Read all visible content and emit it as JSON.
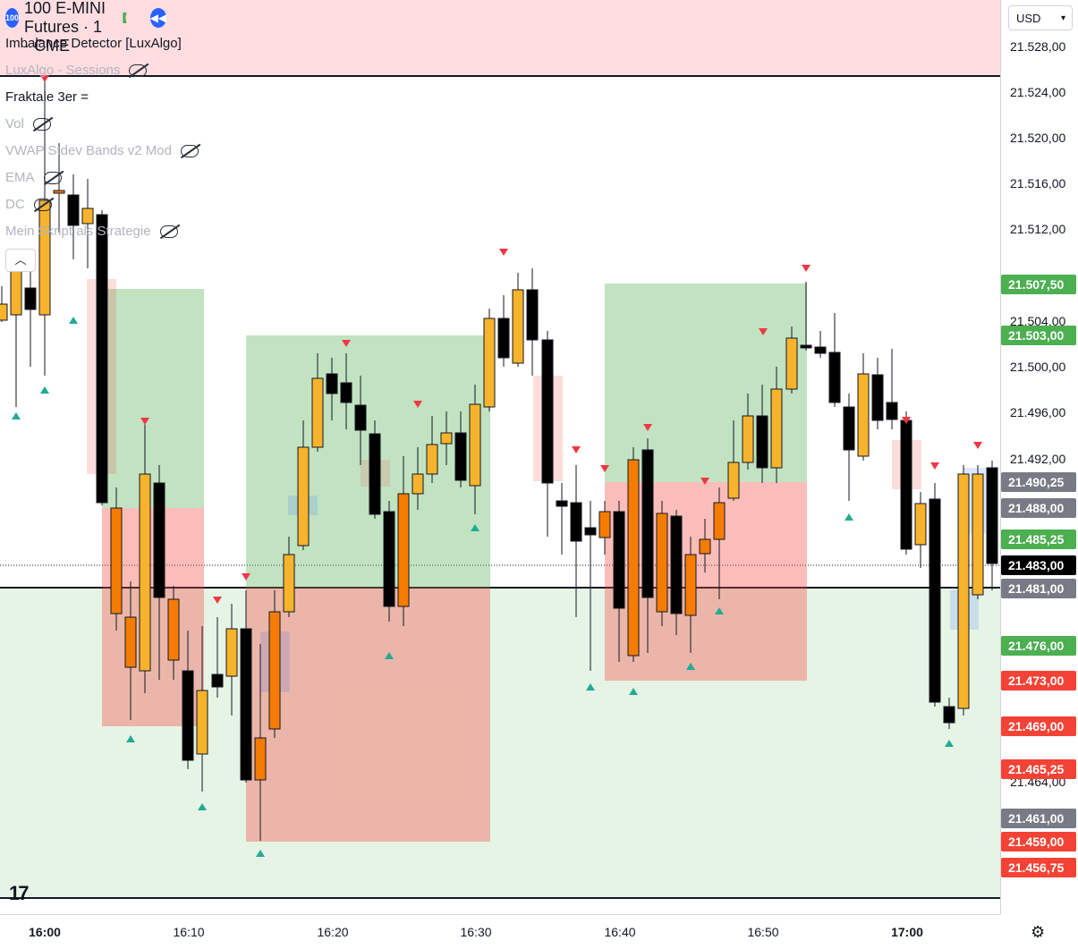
{
  "header": {
    "symbol_badge": "100",
    "symbol_title": "NASDAQ 100 E-MINI Futures · 1 · CME"
  },
  "legend": [
    {
      "label": "Imbalance Detector [LuxAlgo]",
      "hidden": false
    },
    {
      "label": "LuxAlgo - Sessions",
      "hidden": true
    },
    {
      "label": "Fraktale 3er =",
      "hidden": false
    },
    {
      "label": "Vol",
      "hidden": true
    },
    {
      "label": "VWAP Stdev Bands v2 Mod",
      "hidden": true
    },
    {
      "label": "EMA",
      "hidden": true
    },
    {
      "label": "DC",
      "hidden": true
    },
    {
      "label": "Mein Skript als Strategie",
      "hidden": true
    }
  ],
  "currency": "USD",
  "colors": {
    "bull_body": "#f7b32b",
    "bear_body": "#000000",
    "orange_body": "#f57c00",
    "profit_zone": "#4caf50",
    "loss_zone": "#f44336",
    "tag_green": "#4caf50",
    "tag_red": "#f44336",
    "tag_gray": "#787b86",
    "tag_black": "#000000"
  },
  "price_axis_ticks": [
    "21.528,00",
    "21.524,00",
    "21.520,00",
    "21.516,00",
    "21.512,00",
    "21.504,00",
    "21.500,00",
    "21.496,00",
    "21.492,00",
    "21.464,00"
  ],
  "price_tags": [
    {
      "label": "21.507,50",
      "color": "green"
    },
    {
      "label": "21.503,00",
      "color": "green"
    },
    {
      "label": "21.490,25",
      "color": "gray"
    },
    {
      "label": "21.488,00",
      "color": "gray"
    },
    {
      "label": "21.485,25",
      "color": "green"
    },
    {
      "label": "21.483,00",
      "color": "black"
    },
    {
      "label": "21.481,00",
      "color": "gray"
    },
    {
      "label": "21.476,00",
      "color": "green"
    },
    {
      "label": "21.473,00",
      "color": "red"
    },
    {
      "label": "21.469,00",
      "color": "red"
    },
    {
      "label": "21.465,25",
      "color": "red"
    },
    {
      "label": "21.461,00",
      "color": "gray"
    },
    {
      "label": "21.459,00",
      "color": "red"
    },
    {
      "label": "21.456,75",
      "color": "red"
    }
  ],
  "time_axis_ticks": [
    "16:00",
    "16:10",
    "16:20",
    "16:30",
    "16:40",
    "16:50",
    "17:00"
  ]
}
